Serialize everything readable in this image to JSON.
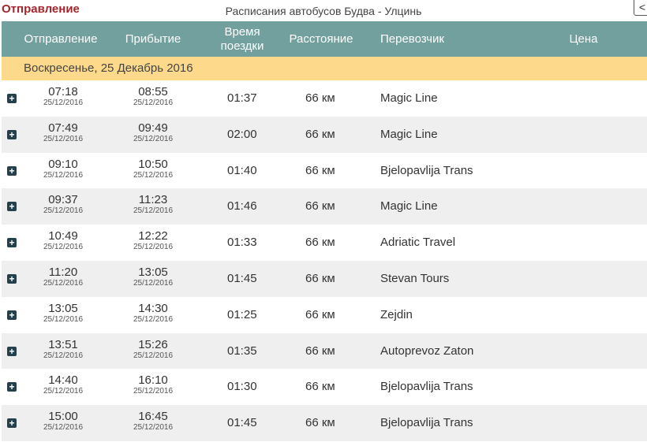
{
  "header": {
    "brand": "Отправление",
    "title": "Расписания автобусов Будва - Улцинь"
  },
  "columns": {
    "departure": "Отправление",
    "arrival": "Прибытие",
    "duration": "Время поездки",
    "distance": "Расстояние",
    "carrier": "Перевозчик",
    "price": "Цена"
  },
  "date_group": "Воскресенье, 25 Декабрь 2016",
  "rows": [
    {
      "dep": "07:18",
      "dep_date": "25/12/2016",
      "arr": "08:55",
      "arr_date": "25/12/2016",
      "dur": "01:37",
      "dist": "66 км",
      "carrier": "Magic Line"
    },
    {
      "dep": "07:49",
      "dep_date": "25/12/2016",
      "arr": "09:49",
      "arr_date": "25/12/2016",
      "dur": "02:00",
      "dist": "66 км",
      "carrier": "Magic Line"
    },
    {
      "dep": "09:10",
      "dep_date": "25/12/2016",
      "arr": "10:50",
      "arr_date": "25/12/2016",
      "dur": "01:40",
      "dist": "66 км",
      "carrier": "Bjelopavlija Trans"
    },
    {
      "dep": "09:37",
      "dep_date": "25/12/2016",
      "arr": "11:23",
      "arr_date": "25/12/2016",
      "dur": "01:46",
      "dist": "66 км",
      "carrier": "Magic Line"
    },
    {
      "dep": "10:49",
      "dep_date": "25/12/2016",
      "arr": "12:22",
      "arr_date": "25/12/2016",
      "dur": "01:33",
      "dist": "66 км",
      "carrier": "Adriatic Travel"
    },
    {
      "dep": "11:20",
      "dep_date": "25/12/2016",
      "arr": "13:05",
      "arr_date": "25/12/2016",
      "dur": "01:45",
      "dist": "66 км",
      "carrier": "Stevan Tours"
    },
    {
      "dep": "13:05",
      "dep_date": "25/12/2016",
      "arr": "14:30",
      "arr_date": "25/12/2016",
      "dur": "01:25",
      "dist": "66 км",
      "carrier": "Zejdin"
    },
    {
      "dep": "13:51",
      "dep_date": "25/12/2016",
      "arr": "15:26",
      "arr_date": "25/12/2016",
      "dur": "01:35",
      "dist": "66 км",
      "carrier": "Autoprevoz Zaton"
    },
    {
      "dep": "14:40",
      "dep_date": "25/12/2016",
      "arr": "16:10",
      "arr_date": "25/12/2016",
      "dur": "01:30",
      "dist": "66 км",
      "carrier": "Bjelopavlija Trans"
    },
    {
      "dep": "15:00",
      "dep_date": "25/12/2016",
      "arr": "16:45",
      "arr_date": "25/12/2016",
      "dur": "01:45",
      "dist": "66 км",
      "carrier": "Bjelopavlija Trans"
    }
  ],
  "icons": {
    "expand": "plus-square-icon",
    "share": "share-icon"
  },
  "colors": {
    "header": "#72a09e",
    "date_band": "#fdd98b",
    "brand": "#a4262c"
  }
}
